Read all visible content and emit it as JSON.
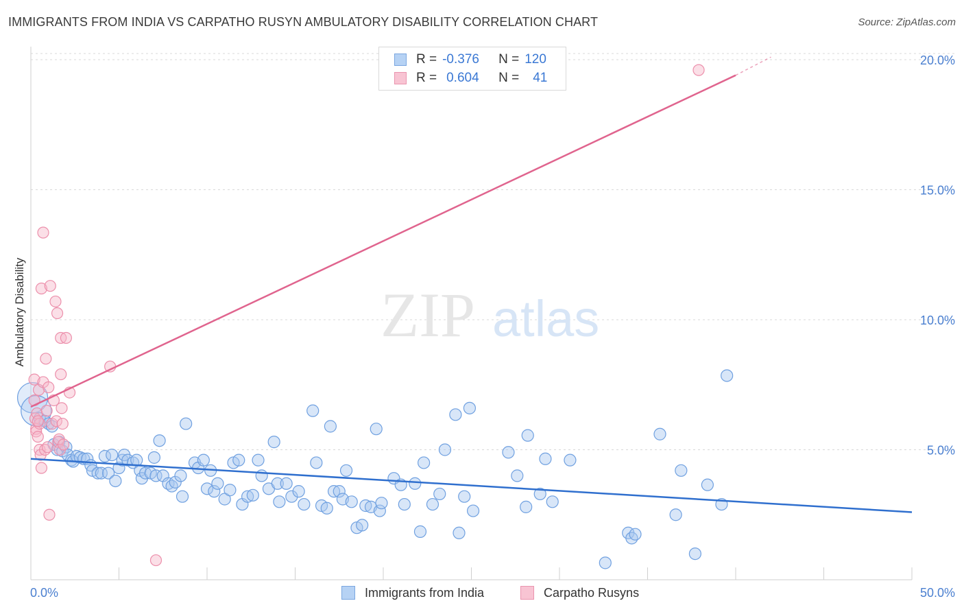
{
  "header": {
    "title": "IMMIGRANTS FROM INDIA VS CARPATHO RUSYN AMBULATORY DISABILITY CORRELATION CHART",
    "source": "Source: ZipAtlas.com"
  },
  "legend": {
    "row1": {
      "r_label": "R =",
      "r_value": "-0.376",
      "n_label": "N =",
      "n_value": "120"
    },
    "row2": {
      "r_label": "R =",
      "r_value": "0.604",
      "n_label": "N =",
      "n_value": "41"
    }
  },
  "watermark": {
    "zip": "ZIP",
    "atlas": "atlas"
  },
  "colors": {
    "blue_fill": "#a8c8f0",
    "blue_stroke": "#6fa0e0",
    "blue_line": "#2f6fce",
    "pink_fill": "#f7b8ca",
    "pink_stroke": "#ec8fab",
    "pink_line": "#e0648e",
    "tick_text": "#4a7fd0",
    "grid": "#d8d8d8"
  },
  "chart_data": {
    "type": "scatter",
    "title": "IMMIGRANTS FROM INDIA VS CARPATHO RUSYN AMBULATORY DISABILITY CORRELATION CHART",
    "xlabel": "",
    "ylabel": "Ambulatory Disability",
    "xlim": [
      0,
      50
    ],
    "ylim": [
      0,
      20.5
    ],
    "x_tick_labels": [
      "0.0%",
      "50.0%"
    ],
    "y_tick_labels": [
      "5.0%",
      "10.0%",
      "15.0%",
      "20.0%"
    ],
    "y_ticks": [
      5,
      10,
      15,
      20
    ],
    "grid": true,
    "legend_position": "top-center",
    "series": [
      {
        "name": "Immigrants from India",
        "color": "#a8c8f0",
        "r": -0.376,
        "n": 120,
        "trend": {
          "x": [
            0,
            50
          ],
          "y": [
            4.65,
            2.6
          ]
        },
        "points": [
          {
            "x": 0.1,
            "y": 7.0,
            "big": true
          },
          {
            "x": 0.3,
            "y": 6.5,
            "big": true
          },
          {
            "x": 0.5,
            "y": 6.2
          },
          {
            "x": 0.8,
            "y": 6.1
          },
          {
            "x": 1.0,
            "y": 6.0
          },
          {
            "x": 1.2,
            "y": 5.9
          },
          {
            "x": 1.3,
            "y": 5.2
          },
          {
            "x": 1.5,
            "y": 5.0
          },
          {
            "x": 1.6,
            "y": 5.3
          },
          {
            "x": 1.8,
            "y": 4.95
          },
          {
            "x": 2.0,
            "y": 5.1
          },
          {
            "x": 2.1,
            "y": 4.8
          },
          {
            "x": 2.3,
            "y": 4.6
          },
          {
            "x": 2.4,
            "y": 4.55
          },
          {
            "x": 2.6,
            "y": 4.75
          },
          {
            "x": 2.8,
            "y": 4.7
          },
          {
            "x": 3.0,
            "y": 4.65
          },
          {
            "x": 3.2,
            "y": 4.65
          },
          {
            "x": 3.4,
            "y": 4.4
          },
          {
            "x": 3.5,
            "y": 4.2
          },
          {
            "x": 3.8,
            "y": 4.1
          },
          {
            "x": 4.0,
            "y": 4.1
          },
          {
            "x": 4.2,
            "y": 4.75
          },
          {
            "x": 4.4,
            "y": 4.1
          },
          {
            "x": 4.6,
            "y": 4.8
          },
          {
            "x": 4.8,
            "y": 3.8
          },
          {
            "x": 5.0,
            "y": 4.3
          },
          {
            "x": 5.2,
            "y": 4.6
          },
          {
            "x": 5.3,
            "y": 4.8
          },
          {
            "x": 5.5,
            "y": 4.6
          },
          {
            "x": 5.8,
            "y": 4.5
          },
          {
            "x": 6.0,
            "y": 4.6
          },
          {
            "x": 6.2,
            "y": 4.2
          },
          {
            "x": 6.3,
            "y": 3.9
          },
          {
            "x": 6.5,
            "y": 4.1
          },
          {
            "x": 6.8,
            "y": 4.1
          },
          {
            "x": 7.0,
            "y": 4.7
          },
          {
            "x": 7.1,
            "y": 4.0
          },
          {
            "x": 7.5,
            "y": 4.0
          },
          {
            "x": 7.8,
            "y": 3.7
          },
          {
            "x": 8.0,
            "y": 3.6
          },
          {
            "x": 8.2,
            "y": 3.75
          },
          {
            "x": 7.3,
            "y": 5.35
          },
          {
            "x": 8.6,
            "y": 3.2
          },
          {
            "x": 8.8,
            "y": 6.0
          },
          {
            "x": 8.5,
            "y": 4.0
          },
          {
            "x": 9.3,
            "y": 4.5
          },
          {
            "x": 9.5,
            "y": 4.3
          },
          {
            "x": 9.8,
            "y": 4.6
          },
          {
            "x": 10.0,
            "y": 3.5
          },
          {
            "x": 10.4,
            "y": 3.4
          },
          {
            "x": 10.6,
            "y": 3.7
          },
          {
            "x": 10.2,
            "y": 4.2
          },
          {
            "x": 11.0,
            "y": 3.1
          },
          {
            "x": 11.3,
            "y": 3.45
          },
          {
            "x": 11.5,
            "y": 4.5
          },
          {
            "x": 11.8,
            "y": 4.6
          },
          {
            "x": 12.0,
            "y": 2.9
          },
          {
            "x": 12.3,
            "y": 3.2
          },
          {
            "x": 12.6,
            "y": 3.25
          },
          {
            "x": 12.9,
            "y": 4.6
          },
          {
            "x": 13.1,
            "y": 4.0
          },
          {
            "x": 13.5,
            "y": 3.5
          },
          {
            "x": 13.8,
            "y": 5.3
          },
          {
            "x": 14.0,
            "y": 3.7
          },
          {
            "x": 14.1,
            "y": 3.0
          },
          {
            "x": 14.5,
            "y": 3.7
          },
          {
            "x": 14.8,
            "y": 3.2
          },
          {
            "x": 15.2,
            "y": 3.4
          },
          {
            "x": 15.5,
            "y": 2.9
          },
          {
            "x": 16.0,
            "y": 6.5
          },
          {
            "x": 16.2,
            "y": 4.5
          },
          {
            "x": 16.5,
            "y": 2.85
          },
          {
            "x": 16.8,
            "y": 2.75
          },
          {
            "x": 17.0,
            "y": 5.9
          },
          {
            "x": 17.2,
            "y": 3.4
          },
          {
            "x": 17.5,
            "y": 3.4
          },
          {
            "x": 17.7,
            "y": 3.1
          },
          {
            "x": 17.9,
            "y": 4.2
          },
          {
            "x": 18.2,
            "y": 3.0
          },
          {
            "x": 18.5,
            "y": 2.0
          },
          {
            "x": 18.8,
            "y": 2.1
          },
          {
            "x": 19.0,
            "y": 2.85
          },
          {
            "x": 19.3,
            "y": 2.8
          },
          {
            "x": 19.6,
            "y": 5.8
          },
          {
            "x": 19.8,
            "y": 2.65
          },
          {
            "x": 19.9,
            "y": 2.95
          },
          {
            "x": 20.6,
            "y": 3.9
          },
          {
            "x": 21.0,
            "y": 3.65
          },
          {
            "x": 21.2,
            "y": 2.9
          },
          {
            "x": 21.8,
            "y": 3.7
          },
          {
            "x": 22.1,
            "y": 1.85
          },
          {
            "x": 22.3,
            "y": 4.5
          },
          {
            "x": 22.8,
            "y": 2.9
          },
          {
            "x": 23.2,
            "y": 3.3
          },
          {
            "x": 23.5,
            "y": 5.0
          },
          {
            "x": 24.1,
            "y": 6.35
          },
          {
            "x": 24.3,
            "y": 1.8
          },
          {
            "x": 24.6,
            "y": 3.2
          },
          {
            "x": 24.9,
            "y": 6.6
          },
          {
            "x": 25.1,
            "y": 2.65
          },
          {
            "x": 27.1,
            "y": 4.9
          },
          {
            "x": 27.6,
            "y": 4.0
          },
          {
            "x": 28.1,
            "y": 2.8
          },
          {
            "x": 28.2,
            "y": 5.55
          },
          {
            "x": 28.9,
            "y": 3.3
          },
          {
            "x": 29.2,
            "y": 4.65
          },
          {
            "x": 29.6,
            "y": 3.0
          },
          {
            "x": 30.6,
            "y": 4.6
          },
          {
            "x": 32.6,
            "y": 0.65
          },
          {
            "x": 33.9,
            "y": 1.8
          },
          {
            "x": 34.1,
            "y": 1.6
          },
          {
            "x": 34.3,
            "y": 1.75
          },
          {
            "x": 35.7,
            "y": 5.6
          },
          {
            "x": 36.6,
            "y": 2.5
          },
          {
            "x": 36.9,
            "y": 4.2
          },
          {
            "x": 37.7,
            "y": 1.0
          },
          {
            "x": 38.4,
            "y": 3.65
          },
          {
            "x": 39.5,
            "y": 7.85
          },
          {
            "x": 39.2,
            "y": 2.9
          }
        ]
      },
      {
        "name": "Carpatho Rusyns",
        "color": "#f7b8ca",
        "r": 0.604,
        "n": 41,
        "trend": {
          "x": [
            0,
            40.0
          ],
          "y": [
            6.65,
            19.4
          ]
        },
        "trend_dashed": {
          "x": [
            40.0,
            42.0
          ],
          "y": [
            19.4,
            20.1
          ]
        },
        "points": [
          {
            "x": 0.2,
            "y": 7.7
          },
          {
            "x": 0.2,
            "y": 6.9
          },
          {
            "x": 0.25,
            "y": 6.2
          },
          {
            "x": 0.3,
            "y": 5.8
          },
          {
            "x": 0.3,
            "y": 5.7
          },
          {
            "x": 0.35,
            "y": 6.4
          },
          {
            "x": 0.4,
            "y": 5.5
          },
          {
            "x": 0.45,
            "y": 7.3
          },
          {
            "x": 0.5,
            "y": 6.0
          },
          {
            "x": 0.5,
            "y": 5.0
          },
          {
            "x": 0.55,
            "y": 4.8
          },
          {
            "x": 0.6,
            "y": 11.2
          },
          {
            "x": 0.6,
            "y": 4.3
          },
          {
            "x": 0.7,
            "y": 13.35
          },
          {
            "x": 0.7,
            "y": 7.6
          },
          {
            "x": 0.8,
            "y": 5.0
          },
          {
            "x": 0.85,
            "y": 8.5
          },
          {
            "x": 0.9,
            "y": 6.5
          },
          {
            "x": 0.95,
            "y": 5.1
          },
          {
            "x": 1.0,
            "y": 7.4
          },
          {
            "x": 1.05,
            "y": 2.5
          },
          {
            "x": 1.1,
            "y": 11.3
          },
          {
            "x": 1.2,
            "y": 6.0
          },
          {
            "x": 1.3,
            "y": 6.9
          },
          {
            "x": 1.4,
            "y": 10.7
          },
          {
            "x": 1.45,
            "y": 6.1
          },
          {
            "x": 1.5,
            "y": 10.25
          },
          {
            "x": 1.55,
            "y": 5.3
          },
          {
            "x": 1.6,
            "y": 5.4
          },
          {
            "x": 1.65,
            "y": 5.0
          },
          {
            "x": 1.7,
            "y": 7.9
          },
          {
            "x": 1.7,
            "y": 9.3
          },
          {
            "x": 1.75,
            "y": 6.6
          },
          {
            "x": 1.8,
            "y": 6.0
          },
          {
            "x": 1.85,
            "y": 5.2
          },
          {
            "x": 2.0,
            "y": 9.3
          },
          {
            "x": 2.2,
            "y": 7.2
          },
          {
            "x": 4.5,
            "y": 8.2
          },
          {
            "x": 7.1,
            "y": 0.75
          },
          {
            "x": 37.9,
            "y": 19.6
          },
          {
            "x": 0.4,
            "y": 6.1
          }
        ]
      }
    ]
  },
  "bottom_legend": {
    "item1": "Immigrants from India",
    "item2": "Carpatho Rusyns"
  }
}
